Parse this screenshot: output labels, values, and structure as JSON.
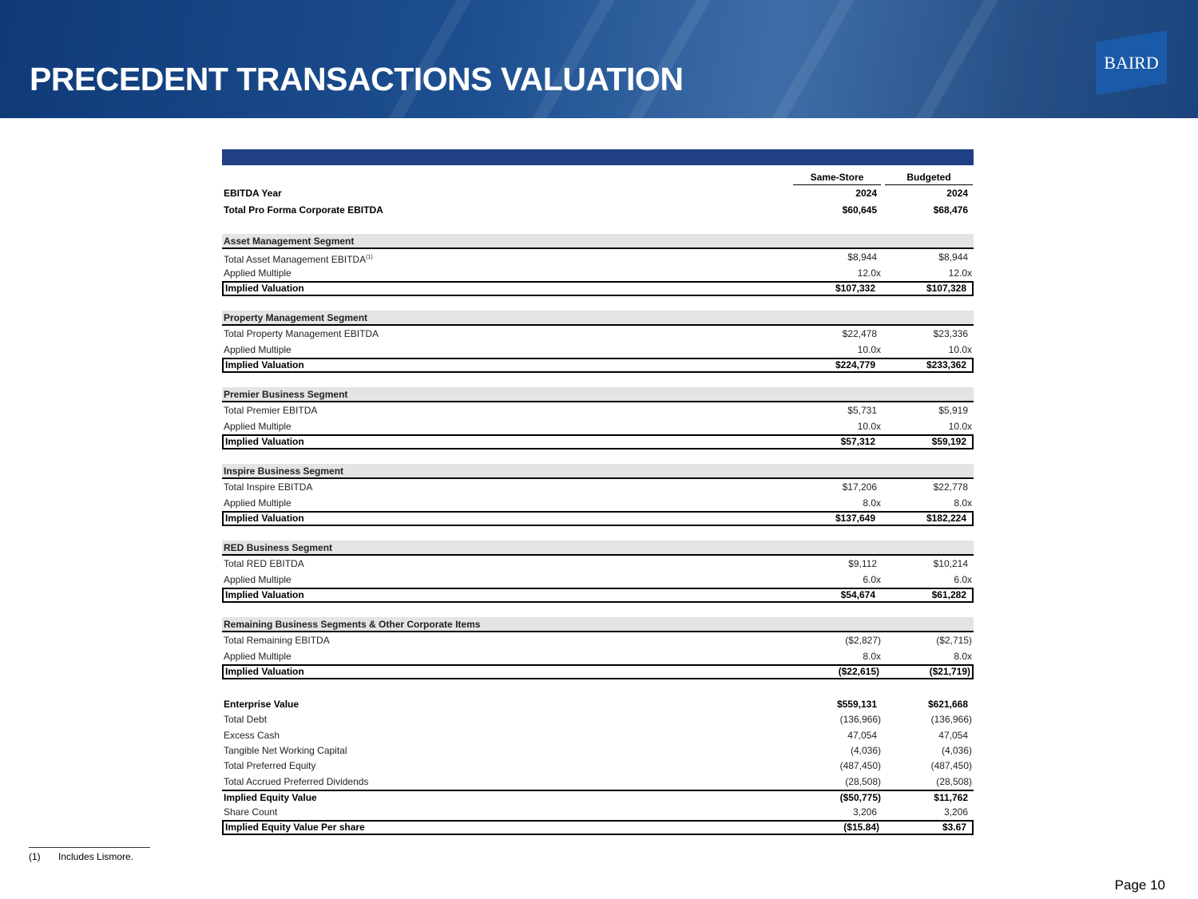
{
  "header": {
    "title": "PRECEDENT TRANSACTIONS VALUATION",
    "logo": "BAIRD"
  },
  "table": {
    "columns": [
      "Same-Store",
      "Budgeted"
    ],
    "top_rows": [
      [
        "EBITDA Year",
        "2024",
        "2024"
      ],
      [
        "Total Pro Forma Corporate EBITDA",
        "$60,645",
        "$68,476"
      ]
    ],
    "segments": [
      {
        "title": "Asset Management Segment",
        "footnote_ref": "(1)",
        "rows": [
          [
            "Total Asset Management EBITDA",
            "$8,944",
            "$8,944"
          ],
          [
            "Applied Multiple",
            "12.0x",
            "12.0x"
          ],
          [
            "Implied Valuation",
            "$107,332",
            "$107,328"
          ]
        ]
      },
      {
        "title": "Property Management Segment",
        "rows": [
          [
            "Total Property Management EBITDA",
            "$22,478",
            "$23,336"
          ],
          [
            "Applied Multiple",
            "10.0x",
            "10.0x"
          ],
          [
            "Implied Valuation",
            "$224,779",
            "$233,362"
          ]
        ]
      },
      {
        "title": "Premier Business Segment",
        "rows": [
          [
            "Total Premier EBITDA",
            "$5,731",
            "$5,919"
          ],
          [
            "Applied Multiple",
            "10.0x",
            "10.0x"
          ],
          [
            "Implied Valuation",
            "$57,312",
            "$59,192"
          ]
        ]
      },
      {
        "title": "Inspire Business Segment",
        "rows": [
          [
            "Total Inspire EBITDA",
            "$17,206",
            "$22,778"
          ],
          [
            "Applied Multiple",
            "8.0x",
            "8.0x"
          ],
          [
            "Implied Valuation",
            "$137,649",
            "$182,224"
          ]
        ]
      },
      {
        "title": "RED Business Segment",
        "rows": [
          [
            "Total RED EBITDA",
            "$9,112",
            "$10,214"
          ],
          [
            "Applied Multiple",
            "6.0x",
            "6.0x"
          ],
          [
            "Implied Valuation",
            "$54,674",
            "$61,282"
          ]
        ]
      },
      {
        "title": "Remaining Business Segments & Other Corporate Items",
        "rows": [
          [
            "Total Remaining EBITDA",
            "($2,827)",
            "($2,715)"
          ],
          [
            "Applied Multiple",
            "8.0x",
            "8.0x"
          ],
          [
            "Implied Valuation",
            "($22,615)",
            "($21,719)"
          ]
        ]
      }
    ],
    "summary_rows": [
      [
        "Enterprise Value",
        "$559,131",
        "$621,668"
      ],
      [
        "Total Debt",
        "(136,966)",
        "(136,966)"
      ],
      [
        "Excess Cash",
        "47,054",
        "47,054"
      ],
      [
        "Tangible Net Working Capital",
        "(4,036)",
        "(4,036)"
      ],
      [
        "Total Preferred Equity",
        "(487,450)",
        "(487,450)"
      ],
      [
        "Total Accrued Preferred Dividends",
        "(28,508)",
        "(28,508)"
      ],
      [
        "Implied Equity Value",
        "($50,775)",
        "$11,762"
      ],
      [
        "Share Count",
        "3,206",
        "3,206"
      ],
      [
        "Implied Equity Value Per share",
        "($15.84)",
        "$3.67"
      ]
    ]
  },
  "footnote": {
    "marker": "(1)",
    "text": "Includes Lismore."
  },
  "page": "Page 10"
}
